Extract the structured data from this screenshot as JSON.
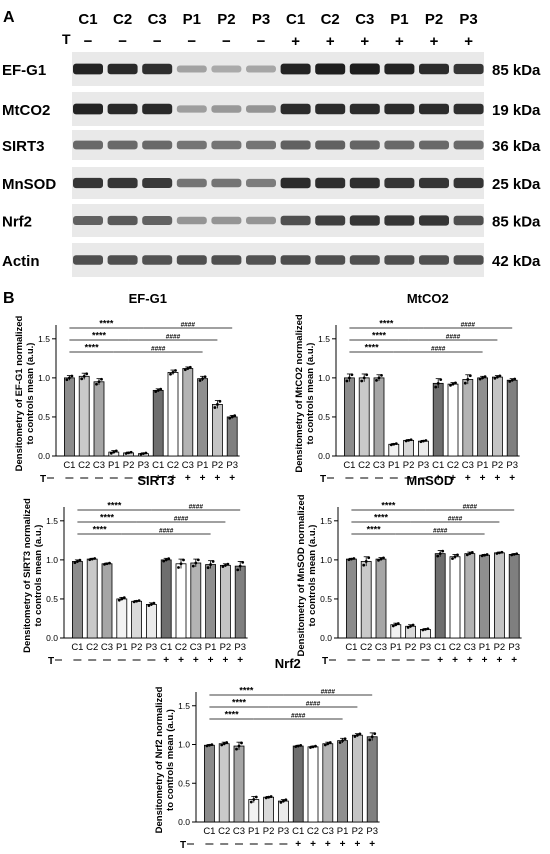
{
  "panel_a": {
    "label": "A",
    "lanes": [
      "C1",
      "C2",
      "C3",
      "P1",
      "P2",
      "P3",
      "C1",
      "C2",
      "C3",
      "P1",
      "P2",
      "P3"
    ],
    "treatment_label": "T",
    "treatment": [
      "−",
      "−",
      "−",
      "−",
      "−",
      "−",
      "+",
      "+",
      "+",
      "+",
      "+",
      "+"
    ],
    "rows": [
      {
        "name": "EF-G1",
        "size": "85 kDa",
        "intensity": [
          0.95,
          0.92,
          0.88,
          0.22,
          0.18,
          0.2,
          0.95,
          0.98,
          0.98,
          0.95,
          0.9,
          0.85
        ]
      },
      {
        "name": "MtCO2",
        "size": "19 kDa",
        "intensity": [
          0.95,
          0.92,
          0.92,
          0.25,
          0.28,
          0.3,
          0.9,
          0.9,
          0.9,
          0.9,
          0.9,
          0.88
        ]
      },
      {
        "name": "SIRT3",
        "size": "36 kDa",
        "intensity": [
          0.55,
          0.55,
          0.55,
          0.5,
          0.5,
          0.5,
          0.6,
          0.6,
          0.58,
          0.55,
          0.55,
          0.55
        ]
      },
      {
        "name": "MnSOD",
        "size": "25 kDa",
        "intensity": [
          0.85,
          0.85,
          0.82,
          0.5,
          0.5,
          0.45,
          0.9,
          0.88,
          0.88,
          0.85,
          0.85,
          0.85
        ]
      },
      {
        "name": "Nrf2",
        "size": "85 kDa",
        "intensity": [
          0.6,
          0.65,
          0.6,
          0.3,
          0.3,
          0.3,
          0.7,
          0.8,
          0.85,
          0.85,
          0.85,
          0.7
        ]
      },
      {
        "name": "Actin",
        "size": "42 kDa",
        "intensity": [
          0.7,
          0.7,
          0.68,
          0.7,
          0.7,
          0.68,
          0.72,
          0.7,
          0.7,
          0.7,
          0.7,
          0.7
        ]
      }
    ]
  },
  "panel_b_label": "B",
  "chart_data": [
    {
      "type": "bar",
      "title": "EF-G1",
      "ylabel": "Densitometry of EF-G1 normalized to controls mean (a.u.)",
      "ylim": [
        0,
        1.6
      ],
      "yticks": [
        0.0,
        0.5,
        1.0,
        1.5
      ],
      "categories": [
        "C1",
        "C2",
        "C3",
        "P1",
        "P2",
        "P3",
        "C1",
        "C2",
        "C3",
        "P1",
        "P2",
        "P3"
      ],
      "treatment": [
        "−",
        "−",
        "−",
        "−",
        "−",
        "−",
        "+",
        "+",
        "+",
        "+",
        "+",
        "+"
      ],
      "values": [
        1.0,
        1.02,
        0.95,
        0.05,
        0.04,
        0.03,
        0.84,
        1.07,
        1.12,
        0.99,
        0.66,
        0.5
      ],
      "errors": [
        0.03,
        0.04,
        0.04,
        0.02,
        0.01,
        0.01,
        0.02,
        0.03,
        0.02,
        0.03,
        0.05,
        0.02
      ],
      "comparisons": [
        {
          "label": "****",
          "from": 0,
          "to": 5
        },
        {
          "label": "####",
          "from": 5,
          "to": 11
        },
        {
          "label": "****",
          "from": 0,
          "to": 4
        },
        {
          "label": "####",
          "from": 4,
          "to": 10
        },
        {
          "label": "****",
          "from": 0,
          "to": 3
        },
        {
          "label": "####",
          "from": 3,
          "to": 9
        }
      ]
    },
    {
      "type": "bar",
      "title": "MtCO2",
      "ylabel": "Densitometry of MtCO2 normalized to controls mean (a.u.)",
      "ylim": [
        0,
        1.6
      ],
      "yticks": [
        0.0,
        0.5,
        1.0,
        1.5
      ],
      "categories": [
        "C1",
        "C2",
        "C3",
        "P1",
        "P2",
        "P3",
        "C1",
        "C2",
        "C3",
        "P1",
        "P2",
        "P3"
      ],
      "treatment": [
        "−",
        "−",
        "−",
        "−",
        "−",
        "−",
        "+",
        "+",
        "+",
        "+",
        "+",
        "+"
      ],
      "values": [
        1.0,
        1.0,
        1.0,
        0.15,
        0.2,
        0.19,
        0.93,
        0.92,
        0.98,
        1.0,
        1.01,
        0.97
      ],
      "errors": [
        0.05,
        0.05,
        0.04,
        0.01,
        0.01,
        0.01,
        0.06,
        0.02,
        0.06,
        0.02,
        0.02,
        0.02
      ],
      "comparisons": [
        {
          "label": "****",
          "from": 0,
          "to": 5
        },
        {
          "label": "####",
          "from": 5,
          "to": 11
        },
        {
          "label": "****",
          "from": 0,
          "to": 4
        },
        {
          "label": "####",
          "from": 4,
          "to": 10
        },
        {
          "label": "****",
          "from": 0,
          "to": 3
        },
        {
          "label": "####",
          "from": 3,
          "to": 9
        }
      ]
    },
    {
      "type": "bar",
      "title": "SIRT3",
      "ylabel": "Densitometry of SIRT3 normalized to controls mean (a.u.)",
      "ylim": [
        0,
        1.6
      ],
      "yticks": [
        0.0,
        0.5,
        1.0,
        1.5
      ],
      "categories": [
        "C1",
        "C2",
        "C3",
        "P1",
        "P2",
        "P3",
        "C1",
        "C2",
        "C3",
        "P1",
        "P2",
        "P3"
      ],
      "treatment": [
        "−",
        "−",
        "−",
        "−",
        "−",
        "−",
        "+",
        "+",
        "+",
        "+",
        "+",
        "+"
      ],
      "values": [
        0.98,
        1.01,
        0.95,
        0.5,
        0.47,
        0.43,
        1.0,
        0.95,
        0.96,
        0.94,
        0.93,
        0.92
      ],
      "errors": [
        0.02,
        0.01,
        0.01,
        0.02,
        0.01,
        0.02,
        0.02,
        0.06,
        0.05,
        0.05,
        0.02,
        0.06
      ],
      "comparisons": [
        {
          "label": "****",
          "from": 0,
          "to": 5
        },
        {
          "label": "####",
          "from": 5,
          "to": 11
        },
        {
          "label": "****",
          "from": 0,
          "to": 4
        },
        {
          "label": "####",
          "from": 4,
          "to": 10
        },
        {
          "label": "****",
          "from": 0,
          "to": 3
        },
        {
          "label": "####",
          "from": 3,
          "to": 9
        }
      ]
    },
    {
      "type": "bar",
      "title": "MnSOD",
      "ylabel": "Densitometry of MnSOD normalized to controls mean (a.u.)",
      "ylim": [
        0,
        1.6
      ],
      "yticks": [
        0.0,
        0.5,
        1.0,
        1.5
      ],
      "categories": [
        "C1",
        "C2",
        "C3",
        "P1",
        "P2",
        "P3",
        "C1",
        "C2",
        "C3",
        "P1",
        "P2",
        "P3"
      ],
      "treatment": [
        "−",
        "−",
        "−",
        "−",
        "−",
        "−",
        "+",
        "+",
        "+",
        "+",
        "+",
        "+"
      ],
      "values": [
        1.01,
        0.98,
        1.01,
        0.17,
        0.15,
        0.11,
        1.08,
        1.04,
        1.08,
        1.06,
        1.09,
        1.07
      ],
      "errors": [
        0.01,
        0.06,
        0.02,
        0.02,
        0.02,
        0.01,
        0.04,
        0.03,
        0.02,
        0.01,
        0.01,
        0.01
      ],
      "comparisons": [
        {
          "label": "****",
          "from": 0,
          "to": 5
        },
        {
          "label": "####",
          "from": 5,
          "to": 11
        },
        {
          "label": "****",
          "from": 0,
          "to": 4
        },
        {
          "label": "####",
          "from": 4,
          "to": 10
        },
        {
          "label": "****",
          "from": 0,
          "to": 3
        },
        {
          "label": "####",
          "from": 3,
          "to": 9
        }
      ]
    },
    {
      "type": "bar",
      "title": "Nrf2",
      "ylabel": "Densitometry of Nrf2 normalized to controls mean (a.u.)",
      "ylim": [
        0,
        1.6
      ],
      "yticks": [
        0.0,
        0.5,
        1.0,
        1.5
      ],
      "categories": [
        "C1",
        "C2",
        "C3",
        "P1",
        "P2",
        "P3",
        "C1",
        "C2",
        "C3",
        "P1",
        "P2",
        "P3"
      ],
      "treatment": [
        "−",
        "−",
        "−",
        "−",
        "−",
        "−",
        "+",
        "+",
        "+",
        "+",
        "+",
        "+"
      ],
      "values": [
        0.99,
        1.01,
        0.98,
        0.29,
        0.32,
        0.27,
        0.98,
        0.97,
        1.01,
        1.05,
        1.12,
        1.1
      ],
      "errors": [
        0.01,
        0.02,
        0.05,
        0.04,
        0.01,
        0.02,
        0.01,
        0.01,
        0.02,
        0.03,
        0.02,
        0.05
      ],
      "comparisons": [
        {
          "label": "****",
          "from": 0,
          "to": 5
        },
        {
          "label": "####",
          "from": 5,
          "to": 11
        },
        {
          "label": "****",
          "from": 0,
          "to": 4
        },
        {
          "label": "####",
          "from": 4,
          "to": 10
        },
        {
          "label": "****",
          "from": 0,
          "to": 3
        },
        {
          "label": "####",
          "from": 3,
          "to": 9
        }
      ]
    }
  ],
  "colors": {
    "bar_fills": [
      "#8c8c8c",
      "#c9c9c9",
      "#a6a6a6",
      "#f2f2f2",
      "#d9d9d9",
      "#ebebeb",
      "#6e6e6e",
      "#ffffff",
      "#b3b3b3",
      "#8f8f8f",
      "#c4c4c4",
      "#7f7f7f"
    ],
    "bar_stroke": "#000000",
    "band": "#1a1a1a",
    "text": "#000000"
  }
}
